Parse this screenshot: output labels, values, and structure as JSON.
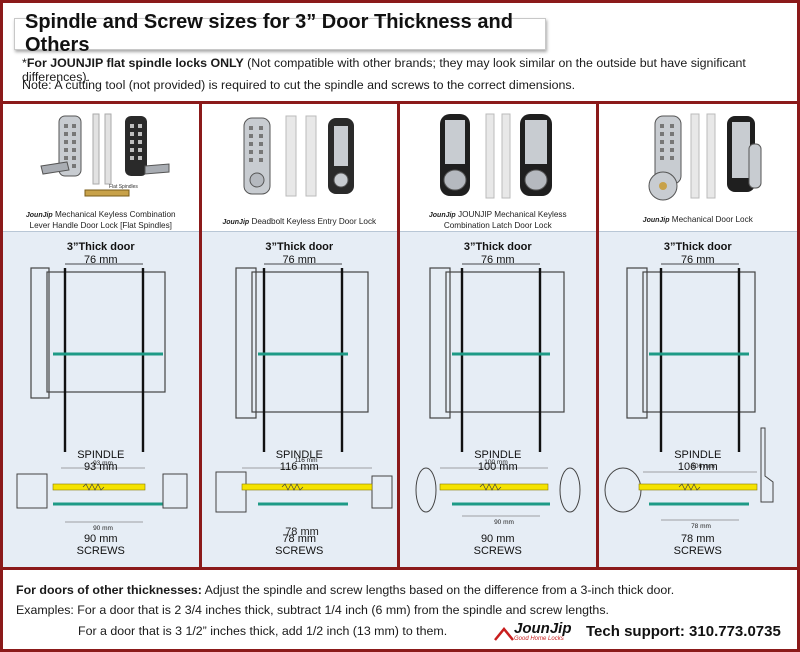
{
  "header": {
    "title": "Spindle and Screw sizes for 3” Door Thickness and Others",
    "notice_prefix": "*",
    "notice_bold": "For JOUNJIP flat spindle locks ONLY",
    "notice_rest": " (Not compatible with other brands; they may look similar on the outside but have significant differences).",
    "note": "Note: A cutting tool (not provided) is required to cut the spindle and screws to the correct dimensions."
  },
  "brand": {
    "name": "JounJip",
    "tagline": "Good Home Locks"
  },
  "colors": {
    "frame": "#8b1a1a",
    "spindle": "#f5e300",
    "screw": "#1e9a86",
    "diagram_bg": "#e6edf5"
  },
  "panels": [
    {
      "caption_line1": "Mechanical Keyless Combination",
      "caption_line2": "Lever Handle Door Lock [Flat Spindles]",
      "door_label": "3”Thick door",
      "thickness": "76 mm",
      "spindle_dim": "93 mm",
      "screw_dim": "90 mm",
      "spindle_title": "SPINDLE",
      "spindle_value": "93 mm",
      "screws_value": "90 mm",
      "screws_title": "SCREWS",
      "flat_label": "Flat Spindles"
    },
    {
      "caption_line1": "Deadbolt Keyless Entry Door Lock",
      "caption_line2": "",
      "door_label": "3”Thick door",
      "thickness": "76 mm",
      "spindle_dim": "116 mm",
      "screw_dim": "78 mm",
      "spindle_title": "SPINDLE",
      "spindle_value": "116 mm",
      "screws_value": "78 mm",
      "screws_title": "SCREWS"
    },
    {
      "caption_line1": "JOUNJIP Mechanical Keyless",
      "caption_line2": "Combination Latch Door Lock",
      "door_label": "3”Thick door",
      "thickness": "76 mm",
      "spindle_dim": "100 mm",
      "screw_dim": "90 mm",
      "spindle_title": "SPINDLE",
      "spindle_value": "100 mm",
      "screws_value": "90 mm",
      "screws_title": "SCREWS"
    },
    {
      "caption_line1": "Mechanical Door Lock",
      "caption_line2": "",
      "door_label": "3”Thick door",
      "thickness": "76 mm",
      "spindle_dim": "106 mm",
      "screw_dim": "78 mm",
      "spindle_title": "SPINDLE",
      "spindle_value": "106 mm",
      "screws_value": "78 mm",
      "screws_title": "SCREWS"
    }
  ],
  "footer": {
    "other_bold": "For doors of other thicknesses:",
    "other_rest": " Adjust the spindle and screw lengths based on the difference from a 3-inch thick door.",
    "example1": "Examples:   For a door that is 2 3/4 inches thick, subtract 1/4 inch (6 mm) from the spindle and screw lengths.",
    "example2": "For a door that is 3 1/2” inches thick, add 1/2 inch (13 mm) to them.",
    "tech_support": "Tech support: 310.773.0735"
  }
}
